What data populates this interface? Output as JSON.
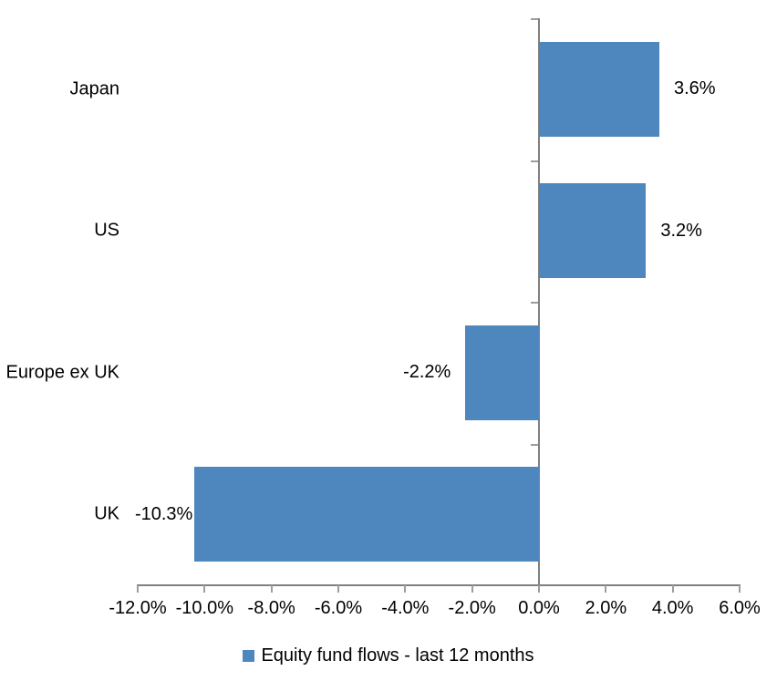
{
  "chart_data": {
    "type": "bar",
    "orientation": "horizontal",
    "title": "",
    "categories": [
      "Japan",
      "US",
      "Europe ex UK",
      "UK"
    ],
    "series": [
      {
        "name": "Equity fund flows - last 12 months",
        "values": [
          3.6,
          3.2,
          -2.2,
          -10.3
        ],
        "data_labels": [
          "3.6%",
          "3.2%",
          "-2.2%",
          "-10.3%"
        ]
      }
    ],
    "xlabel": "",
    "ylabel": "",
    "xlim": [
      -12,
      6
    ],
    "x_tick_values": [
      -12,
      -10,
      -8,
      -6,
      -4,
      -2,
      0,
      2,
      4,
      6
    ],
    "x_tick_labels": [
      "-12.0%",
      "-10.0%",
      "-8.0%",
      "-6.0%",
      "-4.0%",
      "-2.0%",
      "0.0%",
      "2.0%",
      "4.0%",
      "6.0%"
    ],
    "grid": false,
    "legend_position": "bottom-center",
    "colors": {
      "bar": "#4E87BE",
      "axis_line": "#808080",
      "tick": "#9D9D9D",
      "text": "#000000",
      "background": "#FFFFFF"
    }
  },
  "legend": {
    "label": "Equity fund flows - last 12 months"
  }
}
